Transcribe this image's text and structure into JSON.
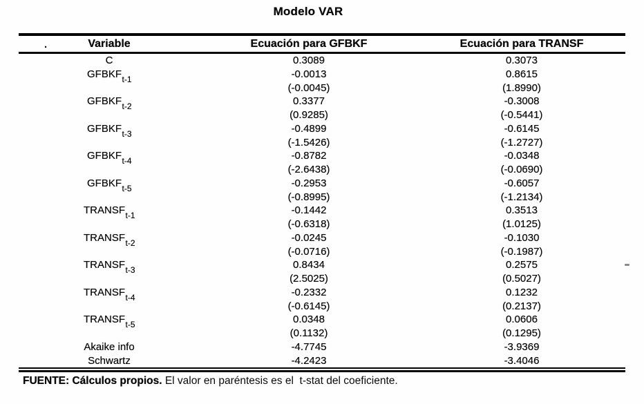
{
  "page": {
    "title": "Modelo VAR"
  },
  "table": {
    "columns": [
      "Variable",
      "Ecuación para GFBKF",
      "Ecuación para TRANSF"
    ],
    "rows": [
      {
        "label": "C",
        "sub": "",
        "gfbkf": "0.3089",
        "transf": "0.3073"
      },
      {
        "label": "GFBKF",
        "sub": "t-1",
        "gfbkf": "-0.0013",
        "transf": "0.8615"
      },
      {
        "label": "",
        "sub": "",
        "gfbkf": "(-0.0045)",
        "transf": "(1.8990)"
      },
      {
        "label": "GFBKF",
        "sub": "t-2",
        "gfbkf": "0.3377",
        "transf": "-0.3008"
      },
      {
        "label": "",
        "sub": "",
        "gfbkf": "(0.9285)",
        "transf": "(-0.5441)"
      },
      {
        "label": "GFBKF",
        "sub": "t-3",
        "gfbkf": "-0.4899",
        "transf": "-0.6145"
      },
      {
        "label": "",
        "sub": "",
        "gfbkf": "(-1.5426)",
        "transf": "(-1.2727)"
      },
      {
        "label": "GFBKF",
        "sub": "t-4",
        "gfbkf": "-0.8782",
        "transf": "-0.0348"
      },
      {
        "label": "",
        "sub": "",
        "gfbkf": "(-2.6438)",
        "transf": "(-0.0690)"
      },
      {
        "label": "GFBKF",
        "sub": "t-5",
        "gfbkf": "-0.2953",
        "transf": "-0.6057"
      },
      {
        "label": "",
        "sub": "",
        "gfbkf": "(-0.8995)",
        "transf": "(-1.2134)"
      },
      {
        "label": "TRANSF",
        "sub": "t-1",
        "gfbkf": "-0.1442",
        "transf": "0.3513"
      },
      {
        "label": "",
        "sub": "",
        "gfbkf": "(-0.6318)",
        "transf": "(1.0125)"
      },
      {
        "label": "TRANSF",
        "sub": "t-2",
        "gfbkf": "-0.0245",
        "transf": "-0.1030"
      },
      {
        "label": "",
        "sub": "",
        "gfbkf": "(-0.0716)",
        "transf": "(-0.1987)"
      },
      {
        "label": "TRANSF",
        "sub": "t-3",
        "gfbkf": "0.8434",
        "transf": "0.2575"
      },
      {
        "label": "",
        "sub": "",
        "gfbkf": "(2.5025)",
        "transf": "(0.5027)"
      },
      {
        "label": "TRANSF",
        "sub": "t-4",
        "gfbkf": "-0.2332",
        "transf": "0.1232"
      },
      {
        "label": "",
        "sub": "",
        "gfbkf": "(-0.6145)",
        "transf": "(0.2137)"
      },
      {
        "label": "TRANSF",
        "sub": "t-5",
        "gfbkf": "0.0348",
        "transf": "0.0606"
      },
      {
        "label": "",
        "sub": "",
        "gfbkf": "(0.1132)",
        "transf": "(0.1295)"
      },
      {
        "label": "Akaike info",
        "sub": "",
        "gfbkf": "-4.7745",
        "transf": "-3.9369"
      },
      {
        "label": "Schwartz",
        "sub": "",
        "gfbkf": "-4.2423",
        "transf": "-3.4046"
      }
    ]
  },
  "footer": {
    "source": "FUENTE: Cálculos propios.",
    "note": " El valor en paréntesis es el  t-stat del coeficiente."
  },
  "artifacts": {
    "stray_dot": "."
  }
}
